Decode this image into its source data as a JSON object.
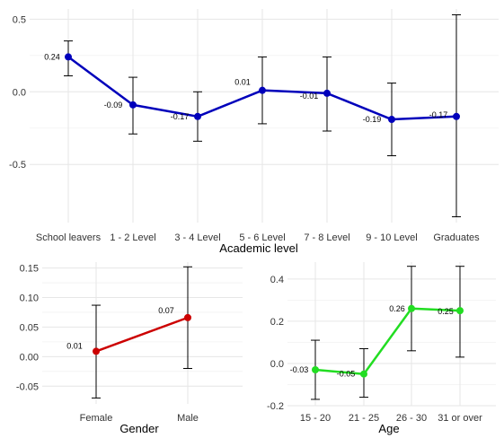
{
  "chart_data": [
    {
      "type": "line",
      "title": "",
      "xlabel": "Academic level",
      "ylabel": "",
      "categories": [
        "School leavers",
        "1 - 2 Level",
        "3 - 4 Level",
        "5 - 6 Level",
        "7 - 8 Level",
        "9 - 10 Level",
        "Graduates"
      ],
      "series": [
        {
          "values": [
            0.24,
            -0.09,
            -0.17,
            0.01,
            -0.01,
            -0.19,
            -0.17
          ],
          "labels": [
            "0.24",
            "-0.09",
            "-0.17",
            "0.01",
            "-0.01",
            "-0.19",
            "-0.17"
          ],
          "error_low": [
            0.11,
            -0.29,
            -0.34,
            -0.22,
            -0.27,
            -0.44,
            -0.86
          ],
          "error_high": [
            0.35,
            0.1,
            0.0,
            0.24,
            0.24,
            0.06,
            0.53
          ],
          "color": "#0000bb"
        }
      ],
      "yticks": [
        0.5,
        0.0,
        -0.5
      ],
      "ytick_labels": [
        "0.5",
        "0.0",
        "-0.5"
      ],
      "ylim": [
        -0.9,
        0.57
      ],
      "grid": true,
      "legend": "none"
    },
    {
      "type": "line",
      "title": "",
      "xlabel": "Gender",
      "ylabel": "",
      "categories": [
        "Female",
        "Male"
      ],
      "series": [
        {
          "values": [
            0.009,
            0.066
          ],
          "labels": [
            "0.01",
            "0.07"
          ],
          "error_low": [
            -0.07,
            -0.02
          ],
          "error_high": [
            0.087,
            0.152
          ],
          "color": "#cc0000"
        }
      ],
      "yticks": [
        0.15,
        0.1,
        0.05,
        0.0,
        -0.05
      ],
      "ytick_labels": [
        "0.15",
        "0.10",
        "0.05",
        "0.00",
        "-0.05"
      ],
      "ylim": [
        -0.08,
        0.16
      ],
      "grid": true,
      "legend": "none"
    },
    {
      "type": "line",
      "title": "",
      "xlabel": "Age",
      "ylabel": "",
      "categories": [
        "15 - 20",
        "21 - 25",
        "26 - 30",
        "31 or over"
      ],
      "series": [
        {
          "values": [
            -0.03,
            -0.05,
            0.26,
            0.25
          ],
          "labels": [
            "-0.03",
            "-0.05",
            "0.26",
            "0.25"
          ],
          "error_low": [
            -0.17,
            -0.16,
            0.06,
            0.03
          ],
          "error_high": [
            0.11,
            0.07,
            0.46,
            0.46
          ],
          "color": "#22dd22"
        }
      ],
      "yticks": [
        0.4,
        0.2,
        0.0,
        -0.2
      ],
      "ytick_labels": [
        "0.4",
        "0.2",
        "0.0",
        "-0.2"
      ],
      "ylim": [
        -0.2,
        0.48
      ],
      "grid": true,
      "legend": "none"
    }
  ]
}
